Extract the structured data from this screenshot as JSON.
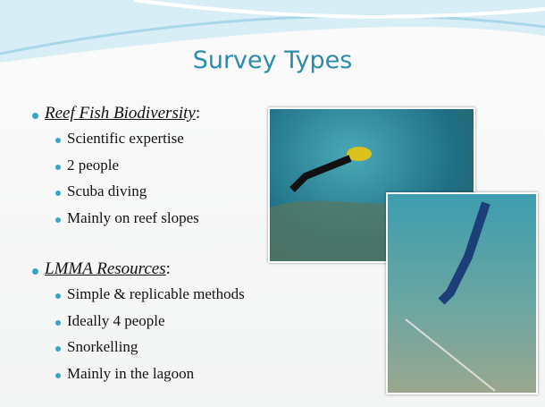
{
  "title": "Survey Types",
  "sections": [
    {
      "heading": "Reef Fish Biodiversity",
      "punctuation": ":",
      "items": [
        "Scientific expertise",
        "2 people",
        "Scuba diving",
        "Mainly on reef slopes"
      ]
    },
    {
      "heading": "LMMA Resources",
      "punctuation": ":",
      "items": [
        "Simple & replicable methods",
        "Ideally 4 people",
        "Snorkelling",
        "Mainly in the lagoon"
      ]
    }
  ]
}
